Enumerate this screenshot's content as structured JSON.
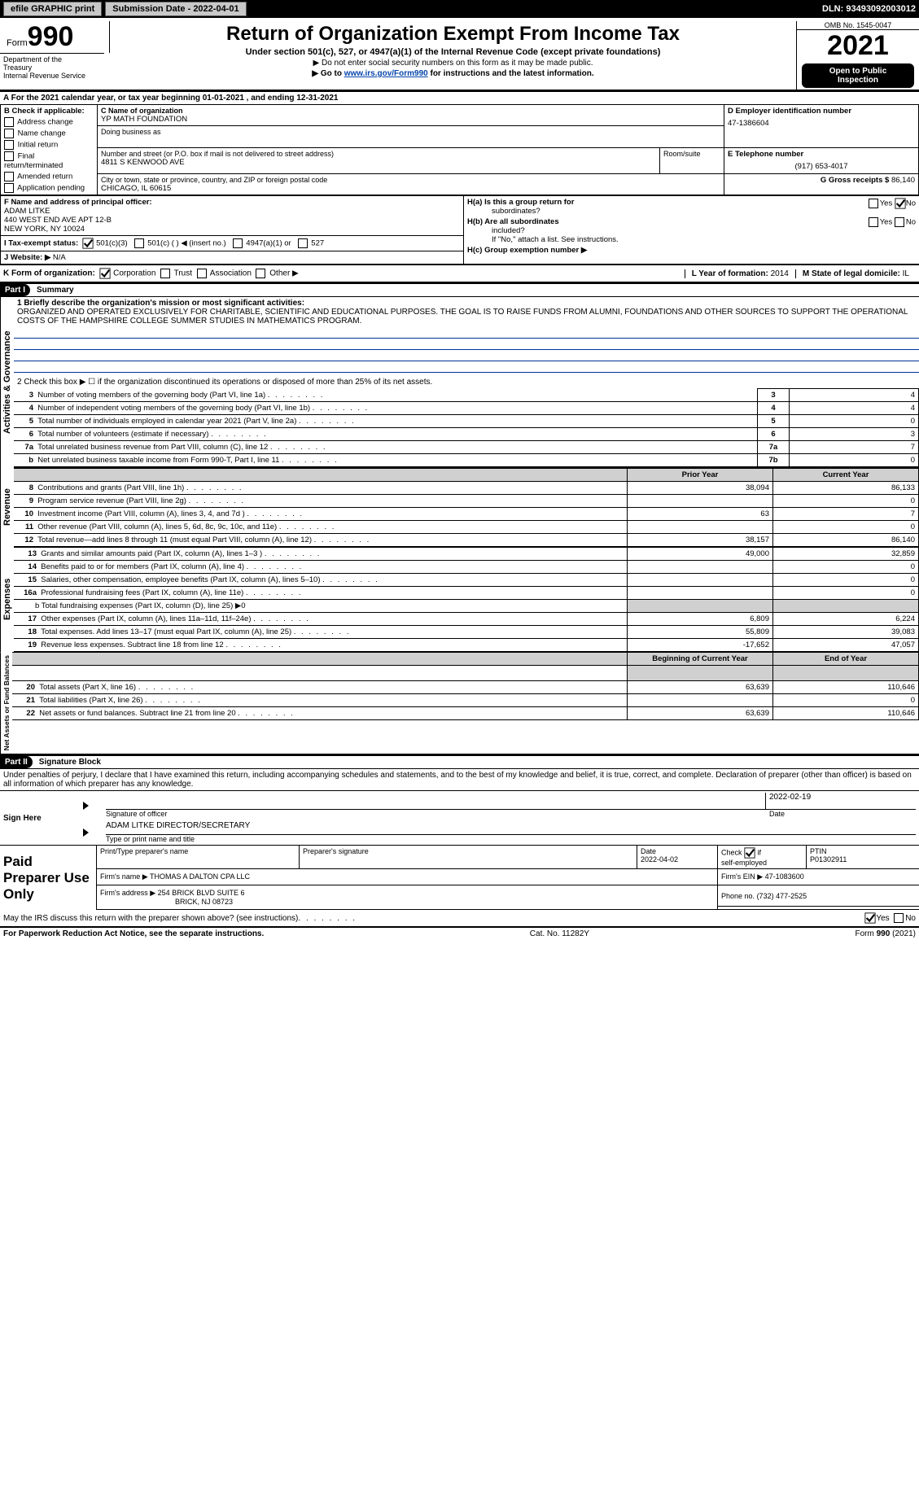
{
  "topbar": {
    "efile_label": "efile GRAPHIC print",
    "submission_label": "Submission Date - 2022-04-01",
    "dln_label": "DLN: 93493092003012"
  },
  "header": {
    "form_word": "Form",
    "form_num": "990",
    "main_title": "Return of Organization Exempt From Income Tax",
    "sub_title": "Under section 501(c), 527, or 4947(a)(1) of the Internal Revenue Code (except private foundations)",
    "ssn_line": "▶ Do not enter social security numbers on this form as it may be made public.",
    "goto_prefix": "▶ Go to ",
    "goto_link": "www.irs.gov/Form990",
    "goto_suffix": " for instructions and the latest information.",
    "omb": "OMB No. 1545-0047",
    "year": "2021",
    "open_pub_l1": "Open to Public",
    "open_pub_l2": "Inspection",
    "dept_l1": "Department of the",
    "dept_l2": "Treasury",
    "dept_l3": "Internal Revenue Service"
  },
  "line_a": "A For the 2021 calendar year, or tax year beginning 01-01-2021    , and ending 12-31-2021",
  "box_b": {
    "title": "B Check if applicable:",
    "opts": [
      "Address change",
      "Name change",
      "Initial return",
      "Final return/terminated",
      "Amended return",
      "Application pending"
    ]
  },
  "box_c": {
    "label": "C Name of organization",
    "org": "YP MATH FOUNDATION",
    "dba_label": "Doing business as",
    "street_label": "Number and street (or P.O. box if mail is not delivered to street address)",
    "room_label": "Room/suite",
    "street": "4811 S KENWOOD AVE",
    "city_label": "City or town, state or province, country, and ZIP or foreign postal code",
    "city": "CHICAGO, IL  60615"
  },
  "box_d": {
    "label": "D Employer identification number",
    "val": "47-1386604"
  },
  "box_e": {
    "label": "E Telephone number",
    "val": "(917) 653-4017"
  },
  "box_g": {
    "label": "G Gross receipts $",
    "val": "86,140"
  },
  "box_f": {
    "label": "F  Name and address of principal officer:",
    "l1": "ADAM LITKE",
    "l2": "440 WEST END AVE APT 12-B",
    "l3": "NEW YORK, NY  10024"
  },
  "box_h": {
    "a_label": "H(a)  Is this a group return for",
    "a_label2": "subordinates?",
    "b_label": "H(b)  Are all subordinates",
    "b_label2": "included?",
    "b_note": "If \"No,\" attach a list. See instructions.",
    "c_label": "H(c)  Group exemption number ▶",
    "yes": "Yes",
    "no": "No"
  },
  "line_i": {
    "label": "I   Tax-exempt status:",
    "o1": "501(c)(3)",
    "o2": "501(c) (   ) ◀ (insert no.)",
    "o3": "4947(a)(1) or",
    "o4": "527"
  },
  "line_j": {
    "label": "J   Website: ▶",
    "val": " N/A"
  },
  "line_k": {
    "label": "K Form of organization:",
    "o1": "Corporation",
    "o2": "Trust",
    "o3": "Association",
    "o4": "Other ▶"
  },
  "line_l": {
    "label": "L Year of formation:",
    "val": "2014"
  },
  "line_m": {
    "label": "M State of legal domicile:",
    "val": "IL"
  },
  "part1": {
    "label": "Part I",
    "title": "Summary",
    "vert1": "Activities & Governance",
    "vert2": "Revenue",
    "vert3": "Expenses",
    "vert4": "Net Assets or Fund Balances",
    "q1_label": "1  Briefly describe the organization's mission or most significant activities:",
    "q1_text": "ORGANIZED AND OPERATED EXCLUSIVELY FOR CHARITABLE, SCIENTIFIC AND EDUCATIONAL PURPOSES. THE GOAL IS TO RAISE FUNDS FROM ALUMNI, FOUNDATIONS AND OTHER SOURCES TO SUPPORT THE OPERATIONAL COSTS OF THE HAMPSHIRE COLLEGE SUMMER STUDIES IN MATHEMATICS PROGRAM.",
    "q2": "2   Check this box ▶ ☐  if the organization discontinued its operations or disposed of more than 25% of its net assets.",
    "rows_gov": [
      {
        "n": "3",
        "t": "Number of voting members of the governing body (Part VI, line 1a)",
        "box": "3",
        "v": "4"
      },
      {
        "n": "4",
        "t": "Number of independent voting members of the governing body (Part VI, line 1b)",
        "box": "4",
        "v": "4"
      },
      {
        "n": "5",
        "t": "Total number of individuals employed in calendar year 2021 (Part V, line 2a)",
        "box": "5",
        "v": "0"
      },
      {
        "n": "6",
        "t": "Total number of volunteers (estimate if necessary)",
        "box": "6",
        "v": "3"
      },
      {
        "n": "7a",
        "t": "Total unrelated business revenue from Part VIII, column (C), line 12",
        "box": "7a",
        "v": "7"
      },
      {
        "n": "b",
        "t": "Net unrelated business taxable income from Form 990-T, Part I, line 11",
        "box": "7b",
        "v": "0"
      }
    ],
    "col_prior": "Prior Year",
    "col_current": "Current Year",
    "rows_rev": [
      {
        "n": "8",
        "t": "Contributions and grants (Part VIII, line 1h)",
        "p": "38,094",
        "c": "86,133"
      },
      {
        "n": "9",
        "t": "Program service revenue (Part VIII, line 2g)",
        "p": "",
        "c": "0"
      },
      {
        "n": "10",
        "t": "Investment income (Part VIII, column (A), lines 3, 4, and 7d )",
        "p": "63",
        "c": "7"
      },
      {
        "n": "11",
        "t": "Other revenue (Part VIII, column (A), lines 5, 6d, 8c, 9c, 10c, and 11e)",
        "p": "",
        "c": "0"
      },
      {
        "n": "12",
        "t": "Total revenue—add lines 8 through 11 (must equal Part VIII, column (A), line 12)",
        "p": "38,157",
        "c": "86,140"
      }
    ],
    "rows_exp": [
      {
        "n": "13",
        "t": "Grants and similar amounts paid (Part IX, column (A), lines 1–3 )",
        "p": "49,000",
        "c": "32,859"
      },
      {
        "n": "14",
        "t": "Benefits paid to or for members (Part IX, column (A), line 4)",
        "p": "",
        "c": "0"
      },
      {
        "n": "15",
        "t": "Salaries, other compensation, employee benefits (Part IX, column (A), lines 5–10)",
        "p": "",
        "c": "0"
      },
      {
        "n": "16a",
        "t": "Professional fundraising fees (Part IX, column (A), line 11e)",
        "p": "",
        "c": "0"
      }
    ],
    "row_16b": "b  Total fundraising expenses (Part IX, column (D), line 25) ▶0",
    "rows_exp2": [
      {
        "n": "17",
        "t": "Other expenses (Part IX, column (A), lines 11a–11d, 11f–24e)",
        "p": "6,809",
        "c": "6,224"
      },
      {
        "n": "18",
        "t": "Total expenses. Add lines 13–17 (must equal Part IX, column (A), line 25)",
        "p": "55,809",
        "c": "39,083"
      },
      {
        "n": "19",
        "t": "Revenue less expenses. Subtract line 18 from line 12",
        "p": "-17,652",
        "c": "47,057"
      }
    ],
    "col_beg": "Beginning of Current Year",
    "col_end": "End of Year",
    "rows_net": [
      {
        "n": "20",
        "t": "Total assets (Part X, line 16)",
        "p": "63,639",
        "c": "110,646"
      },
      {
        "n": "21",
        "t": "Total liabilities (Part X, line 26)",
        "p": "",
        "c": "0"
      },
      {
        "n": "22",
        "t": "Net assets or fund balances. Subtract line 21 from line 20",
        "p": "63,639",
        "c": "110,646"
      }
    ]
  },
  "part2": {
    "label": "Part II",
    "title": "Signature Block",
    "perjury": "Under penalties of perjury, I declare that I have examined this return, including accompanying schedules and statements, and to the best of my knowledge and belief, it is true, correct, and complete. Declaration of preparer (other than officer) is based on all information of which preparer has any knowledge.",
    "sign_here": "Sign Here",
    "sig_officer": "Signature of officer",
    "sig_date": "Date",
    "sig_date_val": "2022-02-19",
    "officer_name": "ADAM LITKE  DIRECTOR/SECRETARY",
    "type_name": "Type or print name and title",
    "paid": "Paid Preparer Use Only",
    "h_print": "Print/Type preparer's name",
    "h_sig": "Preparer's signature",
    "h_date": "Date",
    "h_date_val": "2022-04-02",
    "h_check": "Check ☑ if self-employed",
    "h_ptin": "PTIN",
    "h_ptin_val": "P01302911",
    "firm_name_l": "Firm's name    ▶",
    "firm_name": "THOMAS A DALTON CPA LLC",
    "firm_ein_l": "Firm's EIN ▶",
    "firm_ein": "47-1083600",
    "firm_addr_l": "Firm's address ▶",
    "firm_addr1": "254 BRICK BLVD SUITE 6",
    "firm_addr2": "BRICK, NJ  08723",
    "phone_l": "Phone no.",
    "phone": "(732) 477-2525",
    "discuss": "May the IRS discuss this return with the preparer shown above? (see instructions)",
    "yes": "Yes",
    "no": "No"
  },
  "footer": {
    "l": "For Paperwork Reduction Act Notice, see the separate instructions.",
    "c": "Cat. No. 11282Y",
    "r": "Form 990 (2021)"
  },
  "colors": {
    "blue_line": "#003399",
    "link": "#0645ad"
  }
}
